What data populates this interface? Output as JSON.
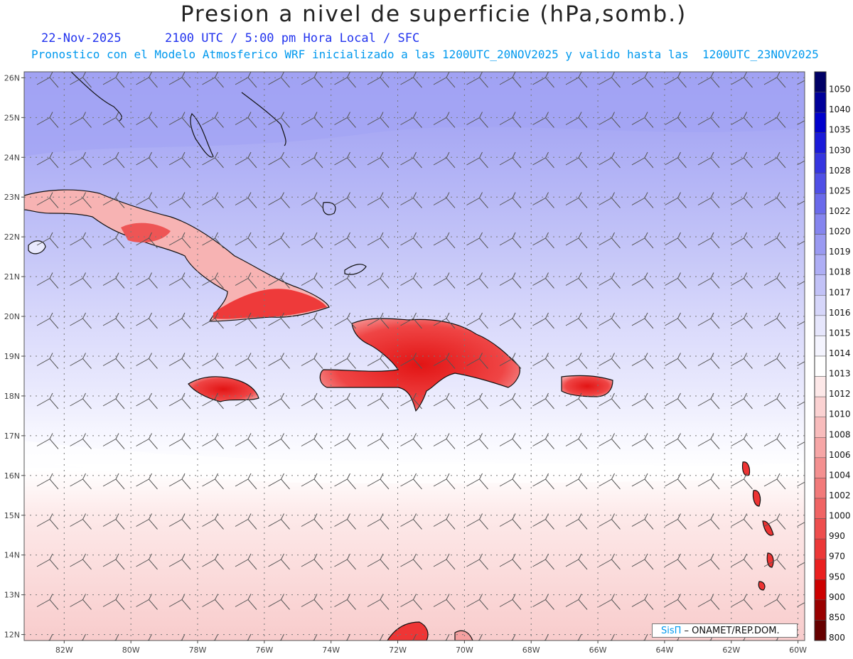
{
  "title": "Presion a nivel de superficie (hPa,somb.)",
  "date": "22-Nov-2025",
  "valid_time": "2100 UTC / 5:00 pm Hora Local / SFC",
  "subtitle": "Pronostico con el Modelo Atmosferico WRF inicializado a las 1200UTC_20NOV2025 y valido hasta las  1200UTC_23NOV2025",
  "lat_labels": [
    "26N",
    "25N",
    "24N",
    "23N",
    "22N",
    "21N",
    "20N",
    "19N",
    "18N",
    "17N",
    "16N",
    "15N",
    "14N",
    "13N",
    "12N"
  ],
  "lon_labels": [
    "82W",
    "80W",
    "78W",
    "76W",
    "74W",
    "72W",
    "70W",
    "68W",
    "66W",
    "64W",
    "62W",
    "60W"
  ],
  "colorbar": {
    "levels": [
      "1050",
      "1040",
      "1035",
      "1030",
      "1028",
      "1025",
      "1022",
      "1020",
      "1019",
      "1018",
      "1017",
      "1016",
      "1015",
      "1014",
      "1013",
      "1012",
      "1010",
      "1008",
      "1006",
      "1004",
      "1002",
      "1000",
      "990",
      "970",
      "950",
      "900",
      "850",
      "800"
    ],
    "colors": [
      "#000066",
      "#00009a",
      "#0000cc",
      "#1a1ad9",
      "#3535e0",
      "#4f4fe6",
      "#6a6aeb",
      "#8585ef",
      "#9a9af2",
      "#aeaef5",
      "#c2c2f7",
      "#d6d6fa",
      "#e6e6fc",
      "#f4f4fe",
      "#ffffff",
      "#fde8e8",
      "#fbd2d2",
      "#f8bcbc",
      "#f6a6a6",
      "#f49090",
      "#f27a7a",
      "#f06464",
      "#ee4e4e",
      "#ec3838",
      "#ea2020",
      "#cc0000",
      "#990000",
      "#660000"
    ]
  },
  "credit": {
    "brand": "SisΠ",
    "text": " – ONAMET/REP.DOM."
  },
  "map": {
    "region": "Caribe",
    "lon_range": [
      -83.2,
      -59.8
    ],
    "lat_range": [
      11.85,
      26.15
    ]
  }
}
